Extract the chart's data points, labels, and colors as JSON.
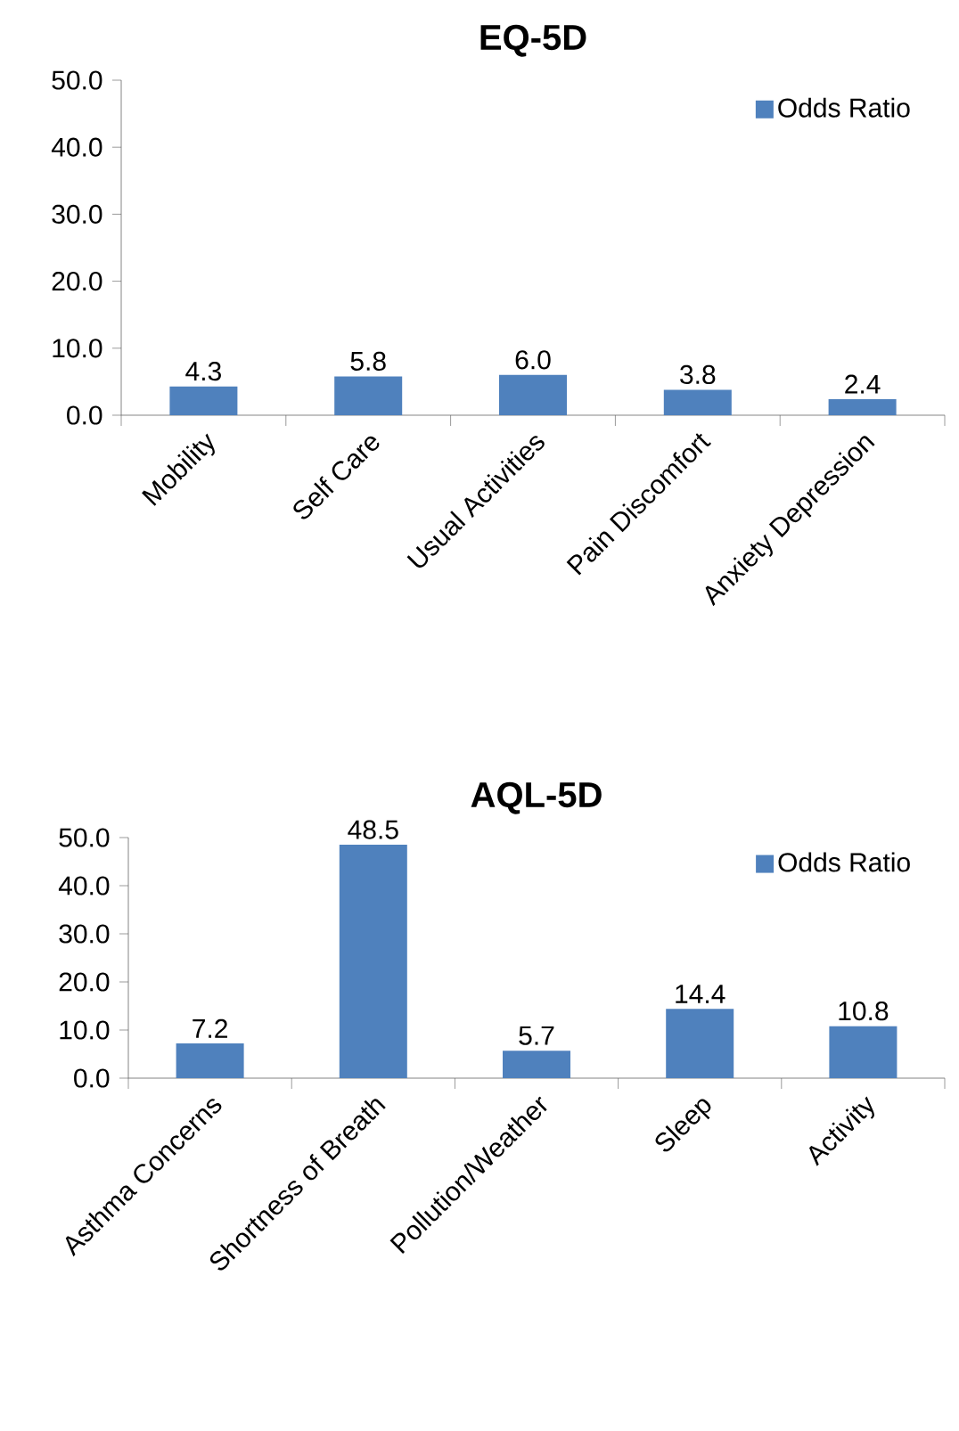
{
  "chart_data": [
    {
      "type": "bar",
      "title": "EQ-5D",
      "categories": [
        "Mobility",
        "Self Care",
        "Usual Activities",
        "Pain Discomfort",
        "Anxiety Depression"
      ],
      "series": [
        {
          "name": "Odds Ratio",
          "color": "#4f81bd",
          "values": [
            4.3,
            5.8,
            6.0,
            3.8,
            2.4
          ],
          "value_labels": [
            "4.3",
            "5.8",
            "6.0",
            "3.8",
            "2.4"
          ]
        }
      ],
      "ylim": [
        0,
        50
      ],
      "yticks": [
        {
          "value": 0,
          "label": "0.0"
        },
        {
          "value": 10,
          "label": "10.0"
        },
        {
          "value": 20,
          "label": "20.0"
        },
        {
          "value": 30,
          "label": "30.0"
        },
        {
          "value": 40,
          "label": "40.0"
        },
        {
          "value": 50,
          "label": "50.0"
        }
      ],
      "legend": "top right"
    },
    {
      "type": "bar",
      "title": "AQL-5D",
      "categories": [
        "Asthma Concerns",
        "Shortness of Breath",
        "Pollution/Weather",
        "Sleep",
        "Activity"
      ],
      "series": [
        {
          "name": "Odds Ratio",
          "color": "#4f81bd",
          "values": [
            7.2,
            48.5,
            5.7,
            14.4,
            10.8
          ],
          "value_labels": [
            "7.2",
            "48.5",
            "5.7",
            "14.4",
            "10.8"
          ]
        }
      ],
      "ylim": [
        0,
        50
      ],
      "yticks": [
        {
          "value": 0,
          "label": "0.0"
        },
        {
          "value": 10,
          "label": "10.0"
        },
        {
          "value": 20,
          "label": "20.0"
        },
        {
          "value": 30,
          "label": "30.0"
        },
        {
          "value": 40,
          "label": "40.0"
        },
        {
          "value": 50,
          "label": "50.0"
        }
      ],
      "legend": "top right"
    }
  ]
}
